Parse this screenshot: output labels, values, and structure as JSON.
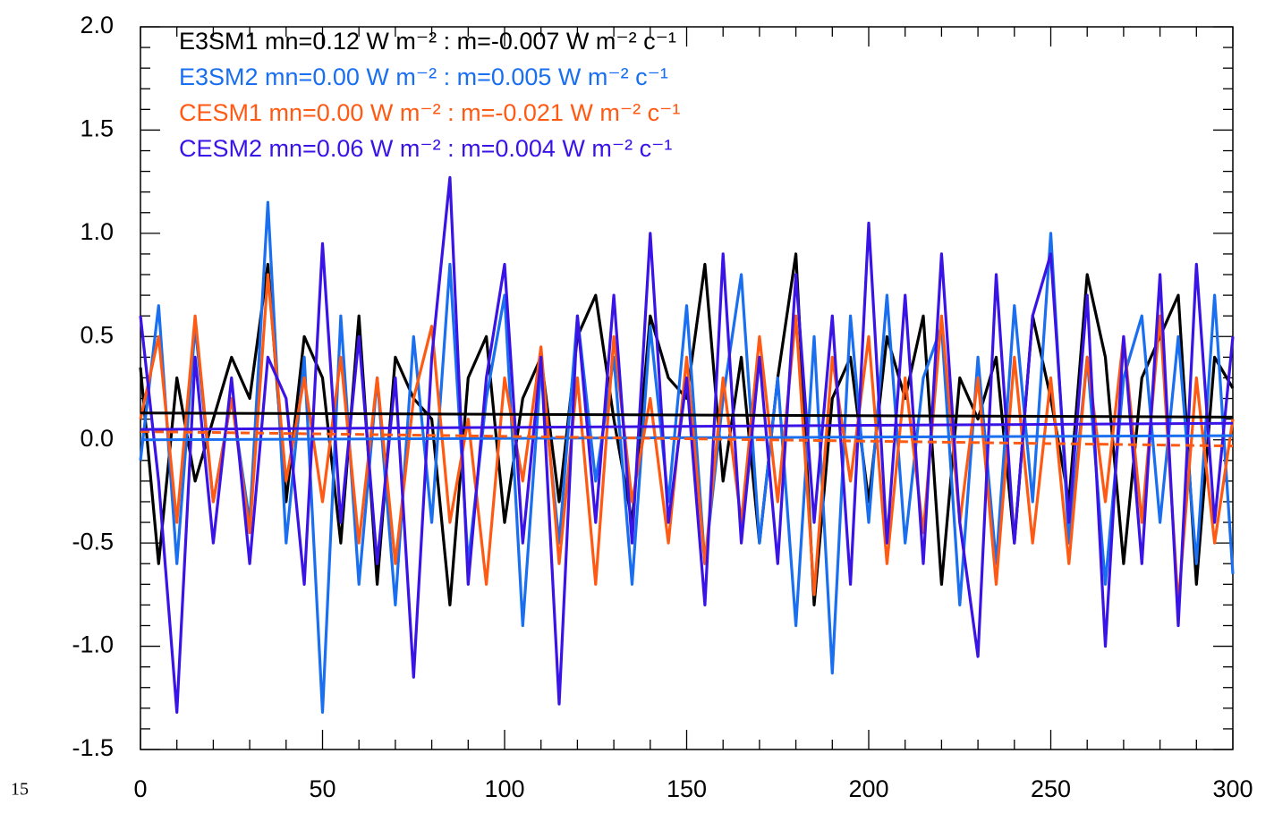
{
  "chart_data": {
    "type": "line",
    "corner_label": "15",
    "xlim": [
      0,
      300
    ],
    "xticks": [
      0,
      50,
      100,
      150,
      200,
      250,
      300
    ],
    "ylim": [
      -1.5,
      2.0
    ],
    "yticks": [
      {
        "value": -1.5,
        "label": "-1.5"
      },
      {
        "value": -1.0,
        "label": "-1.0"
      },
      {
        "value": -0.5,
        "label": "-0.5"
      },
      {
        "value": 0,
        "label": "0.0"
      },
      {
        "value": 0.5,
        "label": "0.5"
      },
      {
        "value": 1.0,
        "label": "1.0"
      },
      {
        "value": 1.5,
        "label": "1.5"
      },
      {
        "value": 2.0,
        "label": "2.0"
      }
    ],
    "x": [
      0,
      5,
      10,
      15,
      20,
      25,
      30,
      35,
      40,
      45,
      50,
      55,
      60,
      65,
      70,
      75,
      80,
      85,
      90,
      95,
      100,
      105,
      110,
      115,
      120,
      125,
      130,
      135,
      140,
      145,
      150,
      155,
      160,
      165,
      170,
      175,
      180,
      185,
      190,
      195,
      200,
      205,
      210,
      215,
      220,
      225,
      230,
      235,
      240,
      245,
      250,
      255,
      260,
      265,
      270,
      275,
      280,
      285,
      290,
      295,
      300
    ],
    "series": [
      {
        "name": "E3SM1",
        "legend": "E3SM1 mn=0.12 W m⁻² : m=-0.007 W m⁻² c⁻¹",
        "color": "#000000",
        "fit": [
          0.13,
          0.11
        ],
        "fit_style": "solid",
        "values": [
          0.35,
          -0.6,
          0.3,
          -0.2,
          0.1,
          0.4,
          0.2,
          0.85,
          -0.3,
          0.5,
          0.3,
          -0.5,
          0.6,
          -0.7,
          0.4,
          0.2,
          0.1,
          -0.8,
          0.3,
          0.5,
          -0.4,
          0.2,
          0.4,
          -0.3,
          0.5,
          0.7,
          0.1,
          -0.4,
          0.6,
          0.3,
          0.2,
          0.85,
          -0.2,
          0.4,
          -0.5,
          0.3,
          0.9,
          -0.8,
          0.2,
          0.4,
          -0.3,
          0.5,
          0.2,
          0.6,
          -0.7,
          0.3,
          0.1,
          0.4,
          -0.5,
          0.6,
          0.2,
          -0.3,
          0.8,
          0.4,
          -0.6,
          0.3,
          0.5,
          0.7,
          -0.7,
          0.4,
          0.25
        ]
      },
      {
        "name": "E3SM2",
        "legend": "E3SM2 mn=0.00 W m⁻² : m=0.005 W m⁻² c⁻¹",
        "color": "#1a6ff0",
        "fit": [
          0.0,
          0.02
        ],
        "fit_style": "solid",
        "values": [
          -0.1,
          0.65,
          -0.6,
          0.55,
          -0.3,
          0.2,
          -0.4,
          1.15,
          -0.5,
          0.4,
          -1.32,
          0.6,
          -0.7,
          0.3,
          -0.8,
          0.5,
          -0.4,
          0.85,
          -0.6,
          0.2,
          0.7,
          -0.9,
          0.35,
          -0.5,
          0.6,
          -0.2,
          0.4,
          -0.7,
          0.55,
          -0.3,
          0.65,
          -0.6,
          0.2,
          0.8,
          -0.5,
          0.3,
          -0.9,
          0.5,
          -1.13,
          0.6,
          -0.4,
          0.7,
          -0.5,
          0.3,
          0.55,
          -0.8,
          0.4,
          -0.6,
          0.65,
          -0.3,
          1.0,
          -0.5,
          0.4,
          -0.7,
          0.3,
          0.6,
          -0.4,
          0.5,
          -0.6,
          0.7,
          -0.65
        ]
      },
      {
        "name": "CESM1",
        "legend": "CESM1 mn=0.00 W m⁻² : m=-0.021 W m⁻² c⁻¹",
        "color": "#ff5a14",
        "fit": [
          0.04,
          -0.03
        ],
        "fit_style": "dashed",
        "values": [
          0.1,
          0.5,
          -0.4,
          0.6,
          -0.3,
          0.2,
          -0.45,
          0.8,
          -0.2,
          0.3,
          -0.3,
          0.4,
          -0.5,
          0.3,
          -0.6,
          0.2,
          0.55,
          -0.4,
          0.1,
          -0.7,
          0.3,
          -0.2,
          0.45,
          -0.6,
          0.3,
          -0.7,
          0.5,
          -0.3,
          0.2,
          -0.5,
          0.4,
          -0.6,
          0.3,
          -0.4,
          0.5,
          -0.3,
          0.6,
          -0.75,
          0.4,
          -0.2,
          0.5,
          -0.6,
          0.3,
          -0.45,
          0.6,
          -0.4,
          0.3,
          -0.7,
          0.4,
          -0.5,
          0.3,
          -0.6,
          0.4,
          -0.3,
          0.5,
          -0.4,
          0.6,
          -0.8,
          0.3,
          -0.5,
          0.1
        ]
      },
      {
        "name": "CESM2",
        "legend": "CESM2 mn=0.06 W m⁻² : m=0.004 W m⁻² c⁻¹",
        "color": "#3a14e6",
        "fit": [
          0.05,
          0.08
        ],
        "fit_style": "solid",
        "values": [
          0.6,
          -0.2,
          -1.32,
          0.4,
          -0.5,
          0.3,
          -0.6,
          0.4,
          0.2,
          -0.7,
          0.95,
          -0.4,
          0.5,
          -0.6,
          0.3,
          -1.15,
          0.4,
          1.27,
          -0.7,
          0.3,
          0.85,
          -0.5,
          0.4,
          -1.28,
          0.6,
          -0.4,
          0.7,
          -0.5,
          1.0,
          -0.4,
          0.3,
          -0.8,
          0.9,
          -0.5,
          0.4,
          -0.6,
          0.8,
          -0.4,
          0.6,
          -0.7,
          1.05,
          -0.5,
          0.7,
          -0.6,
          0.9,
          -0.4,
          -1.05,
          0.8,
          -0.5,
          0.6,
          0.9,
          -0.4,
          0.7,
          -1.0,
          0.5,
          -0.6,
          0.8,
          -0.9,
          0.85,
          -0.4,
          0.5
        ]
      }
    ]
  }
}
